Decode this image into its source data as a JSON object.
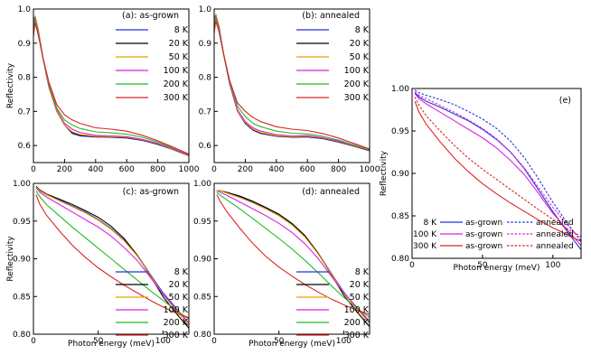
{
  "chart_data": [
    {
      "id": "a",
      "type": "line",
      "panel_label": "(a): as-grown",
      "xlabel": "",
      "ylabel": "Reflectivity",
      "xlim": [
        0,
        1000
      ],
      "ylim": [
        0.55,
        1.0
      ],
      "xticks": [
        0,
        200,
        400,
        600,
        800,
        1000
      ],
      "yticks": [
        0.6,
        0.7,
        0.8,
        0.9,
        1.0
      ],
      "ytick_labels": [
        "0.6",
        "0.7",
        "0.8",
        "0.9",
        "1.0"
      ],
      "legend_position": "top-right",
      "x": [
        0,
        10,
        30,
        60,
        100,
        150,
        200,
        250,
        300,
        400,
        500,
        600,
        700,
        800,
        900,
        1000
      ],
      "series": [
        {
          "name": "8 K",
          "color": "#2233dd",
          "values": [
            0.95,
            0.98,
            0.94,
            0.86,
            0.77,
            0.7,
            0.66,
            0.635,
            0.628,
            0.625,
            0.624,
            0.622,
            0.615,
            0.603,
            0.588,
            0.57
          ]
        },
        {
          "name": "20 K",
          "color": "#000000",
          "values": [
            0.95,
            0.98,
            0.94,
            0.86,
            0.77,
            0.7,
            0.66,
            0.638,
            0.63,
            0.626,
            0.625,
            0.623,
            0.616,
            0.604,
            0.588,
            0.57
          ]
        },
        {
          "name": "50 K",
          "color": "#e8a200",
          "values": [
            0.95,
            0.98,
            0.94,
            0.86,
            0.77,
            0.7,
            0.66,
            0.64,
            0.632,
            0.627,
            0.626,
            0.624,
            0.617,
            0.605,
            0.589,
            0.571
          ]
        },
        {
          "name": "100 K",
          "color": "#dd22dd",
          "values": [
            0.95,
            0.975,
            0.935,
            0.86,
            0.775,
            0.705,
            0.665,
            0.648,
            0.638,
            0.63,
            0.628,
            0.626,
            0.618,
            0.606,
            0.59,
            0.572
          ]
        },
        {
          "name": "200 K",
          "color": "#22bb22",
          "values": [
            0.94,
            0.97,
            0.93,
            0.86,
            0.78,
            0.71,
            0.675,
            0.66,
            0.65,
            0.64,
            0.637,
            0.633,
            0.624,
            0.61,
            0.593,
            0.574
          ]
        },
        {
          "name": "300 K",
          "color": "#dd2222",
          "values": [
            0.92,
            0.96,
            0.925,
            0.86,
            0.785,
            0.72,
            0.69,
            0.675,
            0.665,
            0.652,
            0.648,
            0.642,
            0.63,
            0.614,
            0.595,
            0.575
          ]
        }
      ]
    },
    {
      "id": "b",
      "type": "line",
      "panel_label": "(b): annealed",
      "xlabel": "",
      "ylabel": "",
      "xlim": [
        0,
        1000
      ],
      "ylim": [
        0.55,
        1.0
      ],
      "xticks": [
        0,
        200,
        400,
        600,
        800,
        1000
      ],
      "yticks": [
        0.6,
        0.7,
        0.8,
        0.9,
        1.0
      ],
      "ytick_labels": [
        "0.6",
        "0.7",
        "0.8",
        "0.9",
        "1.0"
      ],
      "legend_position": "top-right",
      "x": [
        0,
        10,
        30,
        60,
        100,
        150,
        200,
        250,
        300,
        400,
        500,
        600,
        700,
        800,
        900,
        1000
      ],
      "series": [
        {
          "name": "8 K",
          "color": "#2233dd",
          "values": [
            0.96,
            0.985,
            0.95,
            0.87,
            0.78,
            0.7,
            0.665,
            0.645,
            0.635,
            0.627,
            0.624,
            0.625,
            0.62,
            0.61,
            0.598,
            0.585
          ]
        },
        {
          "name": "20 K",
          "color": "#000000",
          "values": [
            0.96,
            0.985,
            0.95,
            0.87,
            0.78,
            0.7,
            0.665,
            0.646,
            0.636,
            0.628,
            0.625,
            0.626,
            0.621,
            0.611,
            0.598,
            0.585
          ]
        },
        {
          "name": "50 K",
          "color": "#e8a200",
          "values": [
            0.96,
            0.985,
            0.95,
            0.87,
            0.78,
            0.7,
            0.667,
            0.648,
            0.638,
            0.629,
            0.626,
            0.627,
            0.622,
            0.612,
            0.599,
            0.586
          ]
        },
        {
          "name": "100 K",
          "color": "#dd22dd",
          "values": [
            0.955,
            0.98,
            0.945,
            0.87,
            0.78,
            0.705,
            0.67,
            0.652,
            0.642,
            0.632,
            0.628,
            0.629,
            0.623,
            0.613,
            0.6,
            0.587
          ]
        },
        {
          "name": "200 K",
          "color": "#22bb22",
          "values": [
            0.95,
            0.975,
            0.94,
            0.87,
            0.785,
            0.715,
            0.685,
            0.665,
            0.655,
            0.642,
            0.636,
            0.634,
            0.627,
            0.616,
            0.602,
            0.588
          ]
        },
        {
          "name": "300 K",
          "color": "#dd2222",
          "values": [
            0.93,
            0.965,
            0.935,
            0.87,
            0.79,
            0.725,
            0.7,
            0.682,
            0.67,
            0.655,
            0.648,
            0.644,
            0.635,
            0.622,
            0.606,
            0.59
          ]
        }
      ]
    },
    {
      "id": "c",
      "type": "line",
      "panel_label": "(c): as-grown",
      "xlabel": "Photon energy (meV)",
      "ylabel": "Reflectivity",
      "xlim": [
        0,
        120
      ],
      "ylim": [
        0.8,
        1.0
      ],
      "xticks": [
        0,
        50,
        100
      ],
      "yticks": [
        0.8,
        0.85,
        0.9,
        0.95,
        1.0
      ],
      "ytick_labels": [
        "0.80",
        "0.85",
        "0.90",
        "0.95",
        "1.00"
      ],
      "legend_position": "bottom-right",
      "x": [
        2,
        5,
        10,
        20,
        30,
        40,
        50,
        60,
        70,
        80,
        90,
        100,
        110,
        120
      ],
      "series": [
        {
          "name": "8 K",
          "color": "#2233dd",
          "values": [
            0.995,
            0.99,
            0.985,
            0.978,
            0.97,
            0.962,
            0.952,
            0.94,
            0.925,
            0.905,
            0.88,
            0.855,
            0.835,
            0.815
          ]
        },
        {
          "name": "20 K",
          "color": "#000000",
          "values": [
            0.996,
            0.991,
            0.986,
            0.979,
            0.972,
            0.964,
            0.955,
            0.943,
            0.927,
            0.905,
            0.878,
            0.85,
            0.828,
            0.808
          ]
        },
        {
          "name": "50 K",
          "color": "#e8a200",
          "values": [
            0.995,
            0.99,
            0.985,
            0.977,
            0.969,
            0.961,
            0.951,
            0.939,
            0.924,
            0.904,
            0.879,
            0.853,
            0.832,
            0.812
          ]
        },
        {
          "name": "100 K",
          "color": "#dd22dd",
          "values": [
            0.994,
            0.988,
            0.982,
            0.972,
            0.962,
            0.952,
            0.942,
            0.93,
            0.915,
            0.898,
            0.876,
            0.853,
            0.834,
            0.815
          ]
        },
        {
          "name": "200 K",
          "color": "#22bb22",
          "values": [
            0.99,
            0.982,
            0.972,
            0.957,
            0.942,
            0.928,
            0.914,
            0.9,
            0.886,
            0.872,
            0.858,
            0.845,
            0.832,
            0.82
          ]
        },
        {
          "name": "300 K",
          "color": "#dd2222",
          "values": [
            0.985,
            0.972,
            0.958,
            0.937,
            0.918,
            0.902,
            0.888,
            0.876,
            0.865,
            0.855,
            0.845,
            0.836,
            0.828,
            0.822
          ]
        }
      ]
    },
    {
      "id": "d",
      "type": "line",
      "panel_label": "(d): annealed",
      "xlabel": "Photon energy (meV)",
      "ylabel": "",
      "xlim": [
        0,
        120
      ],
      "ylim": [
        0.8,
        1.0
      ],
      "xticks": [
        0,
        50,
        100
      ],
      "yticks": [
        0.8,
        0.85,
        0.9,
        0.95,
        1.0
      ],
      "ytick_labels": [
        "0.80",
        "0.85",
        "0.90",
        "0.95",
        "1.00"
      ],
      "legend_position": "bottom-right",
      "x": [
        2,
        5,
        10,
        20,
        30,
        40,
        50,
        60,
        70,
        80,
        90,
        100,
        110,
        120
      ],
      "series": [
        {
          "name": "8 K",
          "color": "#2233dd",
          "values": [
            0.99,
            0.99,
            0.988,
            0.982,
            0.975,
            0.967,
            0.958,
            0.946,
            0.93,
            0.908,
            0.882,
            0.856,
            0.835,
            0.815
          ]
        },
        {
          "name": "20 K",
          "color": "#000000",
          "values": [
            0.99,
            0.99,
            0.988,
            0.983,
            0.976,
            0.968,
            0.959,
            0.947,
            0.931,
            0.908,
            0.88,
            0.852,
            0.83,
            0.81
          ]
        },
        {
          "name": "50 K",
          "color": "#e8a200",
          "values": [
            0.99,
            0.99,
            0.987,
            0.981,
            0.974,
            0.966,
            0.957,
            0.945,
            0.929,
            0.907,
            0.881,
            0.855,
            0.834,
            0.814
          ]
        },
        {
          "name": "100 K",
          "color": "#dd22dd",
          "values": [
            0.99,
            0.988,
            0.984,
            0.975,
            0.966,
            0.957,
            0.947,
            0.935,
            0.92,
            0.901,
            0.878,
            0.855,
            0.836,
            0.817
          ]
        },
        {
          "name": "200 K",
          "color": "#22bb22",
          "values": [
            0.988,
            0.984,
            0.978,
            0.966,
            0.953,
            0.94,
            0.927,
            0.913,
            0.898,
            0.882,
            0.865,
            0.849,
            0.835,
            0.822
          ]
        },
        {
          "name": "300 K",
          "color": "#dd2222",
          "values": [
            0.985,
            0.975,
            0.962,
            0.94,
            0.92,
            0.903,
            0.889,
            0.877,
            0.866,
            0.856,
            0.847,
            0.839,
            0.832,
            0.826
          ]
        }
      ]
    },
    {
      "id": "e",
      "type": "line",
      "panel_label": "(e)",
      "xlabel": "Photon energy (meV)",
      "ylabel": "Reflectivity",
      "xlim": [
        0,
        120
      ],
      "ylim": [
        0.8,
        1.0
      ],
      "xticks": [
        0,
        50,
        100
      ],
      "yticks": [
        0.8,
        0.85,
        0.9,
        0.95,
        1.0
      ],
      "ytick_labels": [
        "0.80",
        "0.85",
        "0.90",
        "0.95",
        "1.00"
      ],
      "legend_position": "bottom-left",
      "legend_rows": [
        {
          "temp": "8 K",
          "grown": "as-grown",
          "annealed": "annealed",
          "color": "#2233dd"
        },
        {
          "temp": "100 K",
          "grown": "as-grown",
          "annealed": "annealed",
          "color": "#dd22dd"
        },
        {
          "temp": "300 K",
          "grown": "as-grown",
          "annealed": "annealed",
          "color": "#dd2222"
        }
      ],
      "x": [
        2,
        5,
        10,
        20,
        30,
        40,
        50,
        60,
        70,
        80,
        90,
        100,
        110,
        120
      ],
      "series": [
        {
          "name": "8 K as-grown",
          "color": "#2233dd",
          "dashed": false,
          "values": [
            0.995,
            0.99,
            0.985,
            0.978,
            0.97,
            0.962,
            0.952,
            0.94,
            0.925,
            0.905,
            0.88,
            0.855,
            0.832,
            0.81
          ]
        },
        {
          "name": "100 K as-grown",
          "color": "#dd22dd",
          "dashed": false,
          "values": [
            0.994,
            0.988,
            0.982,
            0.972,
            0.962,
            0.952,
            0.942,
            0.93,
            0.915,
            0.898,
            0.876,
            0.853,
            0.834,
            0.815
          ]
        },
        {
          "name": "300 K as-grown",
          "color": "#dd2222",
          "dashed": false,
          "values": [
            0.985,
            0.972,
            0.958,
            0.937,
            0.918,
            0.902,
            0.888,
            0.876,
            0.865,
            0.855,
            0.845,
            0.836,
            0.828,
            0.82
          ]
        },
        {
          "name": "8 K annealed",
          "color": "#2233dd",
          "dashed": true,
          "values": [
            0.998,
            0.995,
            0.992,
            0.987,
            0.981,
            0.973,
            0.964,
            0.953,
            0.938,
            0.918,
            0.893,
            0.866,
            0.842,
            0.82
          ]
        },
        {
          "name": "100 K annealed",
          "color": "#dd22dd",
          "dashed": true,
          "values": [
            0.996,
            0.992,
            0.988,
            0.98,
            0.972,
            0.963,
            0.953,
            0.941,
            0.925,
            0.906,
            0.883,
            0.86,
            0.84,
            0.822
          ]
        },
        {
          "name": "300 K annealed",
          "color": "#dd2222",
          "dashed": true,
          "values": [
            0.99,
            0.98,
            0.968,
            0.95,
            0.933,
            0.918,
            0.905,
            0.893,
            0.881,
            0.869,
            0.857,
            0.846,
            0.835,
            0.826
          ]
        }
      ]
    }
  ]
}
